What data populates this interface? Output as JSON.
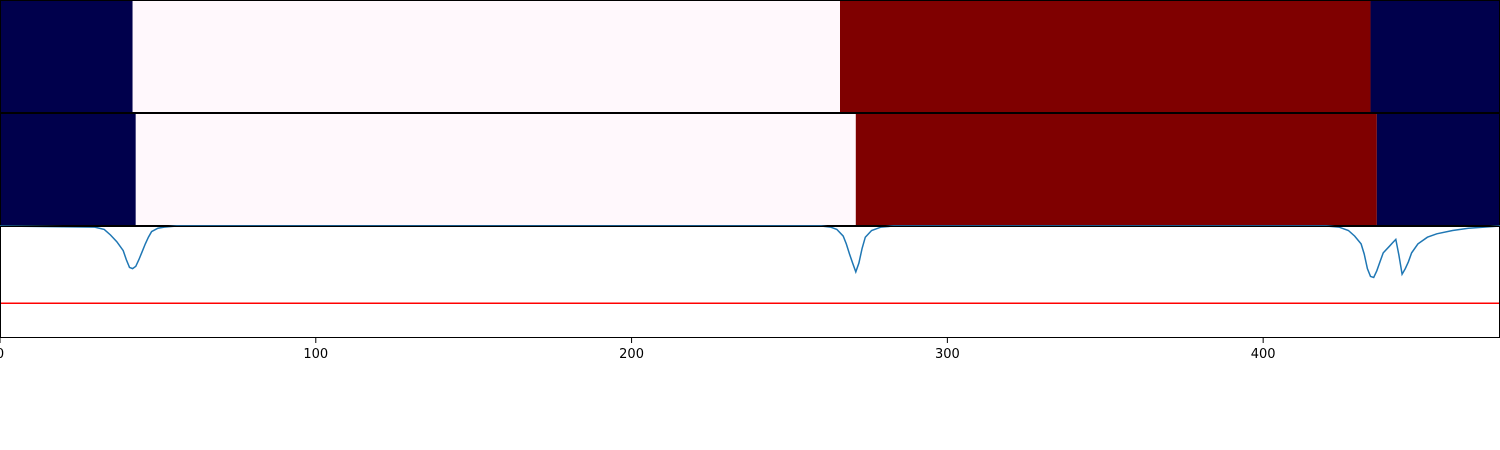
{
  "chart_data": [
    {
      "type": "heatmap",
      "segments": [
        {
          "start": 0,
          "end": 42,
          "color": "#00004c"
        },
        {
          "start": 42,
          "end": 266,
          "color": "#fff8fc"
        },
        {
          "start": 266,
          "end": 434,
          "color": "#7f0000"
        },
        {
          "start": 434,
          "end": 475,
          "color": "#00004c"
        }
      ]
    },
    {
      "type": "heatmap",
      "segments": [
        {
          "start": 0,
          "end": 43,
          "color": "#00004c"
        },
        {
          "start": 43,
          "end": 271,
          "color": "#fff8fc"
        },
        {
          "start": 271,
          "end": 436,
          "color": "#7f0000"
        },
        {
          "start": 436,
          "end": 475,
          "color": "#00004c"
        }
      ]
    },
    {
      "type": "line",
      "xlim": [
        0,
        475
      ],
      "ylim": [
        0,
        1
      ],
      "x_ticks": [
        0,
        100,
        200,
        300,
        400
      ],
      "grid": false,
      "series": [
        {
          "color": "#1f77b4",
          "x": [
            0,
            30,
            33,
            35,
            37,
            39,
            40,
            41,
            42,
            43,
            44,
            45,
            46,
            47,
            48,
            50,
            52,
            56,
            60,
            260,
            263,
            265,
            267,
            268,
            269,
            270,
            271,
            272,
            273,
            274,
            276,
            279,
            283,
            420,
            424,
            427,
            429,
            431,
            432,
            433,
            434,
            435,
            436,
            437,
            438,
            440,
            441,
            442,
            443,
            444,
            445,
            446,
            447,
            449,
            452,
            455,
            460,
            465,
            470,
            475
          ],
          "y": [
            1.0,
            0.99,
            0.97,
            0.92,
            0.86,
            0.78,
            0.7,
            0.63,
            0.62,
            0.64,
            0.7,
            0.77,
            0.84,
            0.9,
            0.95,
            0.98,
            0.99,
            1.0,
            1.0,
            1.0,
            0.99,
            0.97,
            0.91,
            0.84,
            0.75,
            0.67,
            0.59,
            0.67,
            0.8,
            0.9,
            0.96,
            0.99,
            1.0,
            1.0,
            0.99,
            0.96,
            0.91,
            0.84,
            0.75,
            0.62,
            0.55,
            0.54,
            0.6,
            0.68,
            0.76,
            0.82,
            0.85,
            0.88,
            0.74,
            0.57,
            0.62,
            0.68,
            0.76,
            0.84,
            0.9,
            0.93,
            0.96,
            0.98,
            0.99,
            1.0
          ]
        },
        {
          "color": "#ff0000",
          "x": [
            0,
            475
          ],
          "y": [
            0.31,
            0.31
          ]
        }
      ]
    }
  ]
}
